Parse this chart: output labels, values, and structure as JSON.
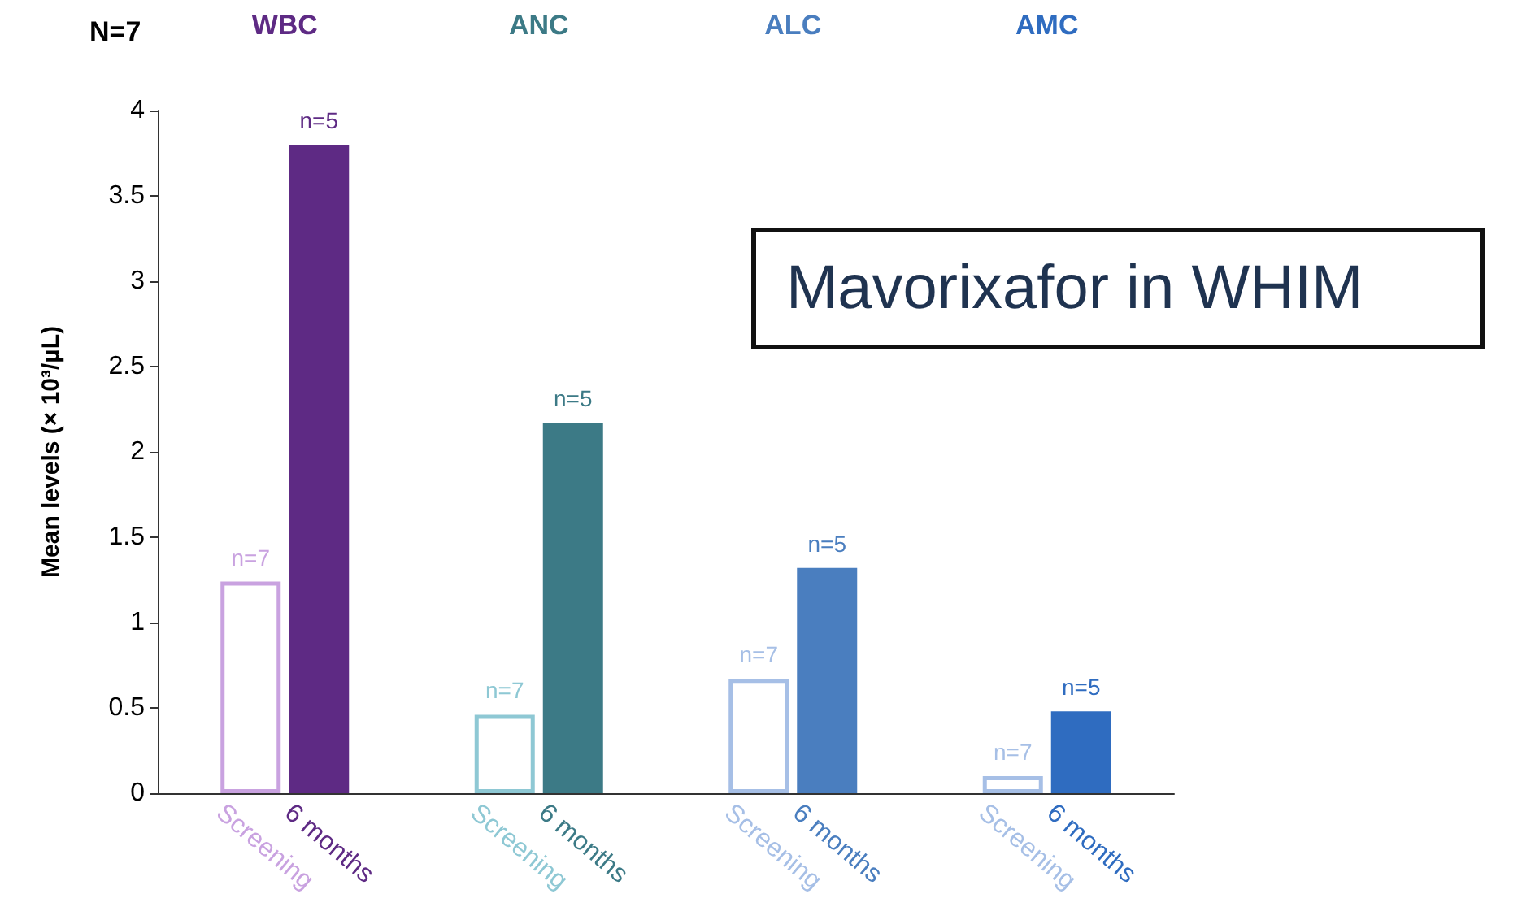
{
  "chart_data": {
    "type": "bar",
    "ylabel": "Mean levels (× 10³/µL)",
    "categories": [
      "WBC",
      "ANC",
      "ALC",
      "AMC"
    ],
    "series": [
      {
        "name": "Screening",
        "colors": [
          "#c9a2e0",
          "#8ec8d4",
          "#a6bfe6",
          "#a6bfe6"
        ],
        "values": [
          1.24,
          0.46,
          0.67,
          0.1
        ]
      },
      {
        "name": "6 months",
        "colors": [
          "#5e2a84",
          "#3c7a86",
          "#4a7ebf",
          "#2f6cc0"
        ],
        "values": [
          3.8,
          2.17,
          1.32,
          0.48
        ]
      }
    ],
    "ylim": [
      0,
      4
    ],
    "yticks": [
      0,
      0.5,
      1,
      1.5,
      2,
      2.5,
      3,
      3.5,
      4
    ],
    "grid": false,
    "legend": false,
    "annotations": [
      "N=7",
      "Mavorixafor in WHIM",
      {
        "text": "n=7",
        "x": "WBC",
        "y": 1.24
      },
      {
        "text": "n=5",
        "x": "WBC",
        "y": 3.8
      },
      {
        "text": "n=7",
        "x": "ANC",
        "y": 0.46
      },
      {
        "text": "n=5",
        "x": "ANC",
        "y": 2.17
      },
      {
        "text": "n=7",
        "x": "ALC",
        "y": 0.67
      },
      {
        "text": "n=5",
        "x": "ALC",
        "y": 1.32
      },
      {
        "text": "n=7",
        "x": "AMC",
        "y": 0.1
      },
      {
        "text": "n=5",
        "x": "AMC",
        "y": 0.48
      }
    ]
  }
}
